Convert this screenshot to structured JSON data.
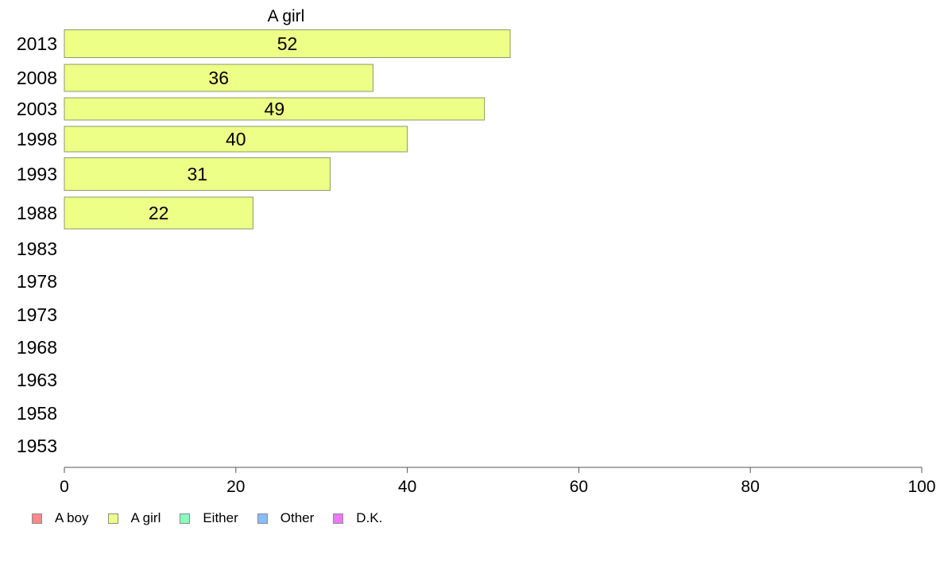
{
  "chart_data": {
    "type": "bar",
    "orientation": "horizontal",
    "title": "A girl",
    "categories": [
      "2013",
      "2008",
      "2003",
      "1998",
      "1993",
      "1988",
      "1983",
      "1978",
      "1973",
      "1968",
      "1963",
      "1958",
      "1953"
    ],
    "series": [
      {
        "name": "A girl",
        "color": "#eeff88",
        "values": [
          52,
          36,
          49,
          40,
          31,
          22,
          null,
          null,
          null,
          null,
          null,
          null,
          null
        ]
      }
    ],
    "xlim": [
      0,
      100
    ],
    "xticks": [
      0,
      20,
      40,
      60,
      80,
      100
    ],
    "grid": false,
    "legend_position": "bottom-left",
    "legend": [
      {
        "label": "A boy",
        "color": "#ff8888"
      },
      {
        "label": "A girl",
        "color": "#eeff88"
      },
      {
        "label": "Either",
        "color": "#88ffbb"
      },
      {
        "label": "Other",
        "color": "#88bbff"
      },
      {
        "label": "D.K.",
        "color": "#ee77ff"
      }
    ]
  }
}
